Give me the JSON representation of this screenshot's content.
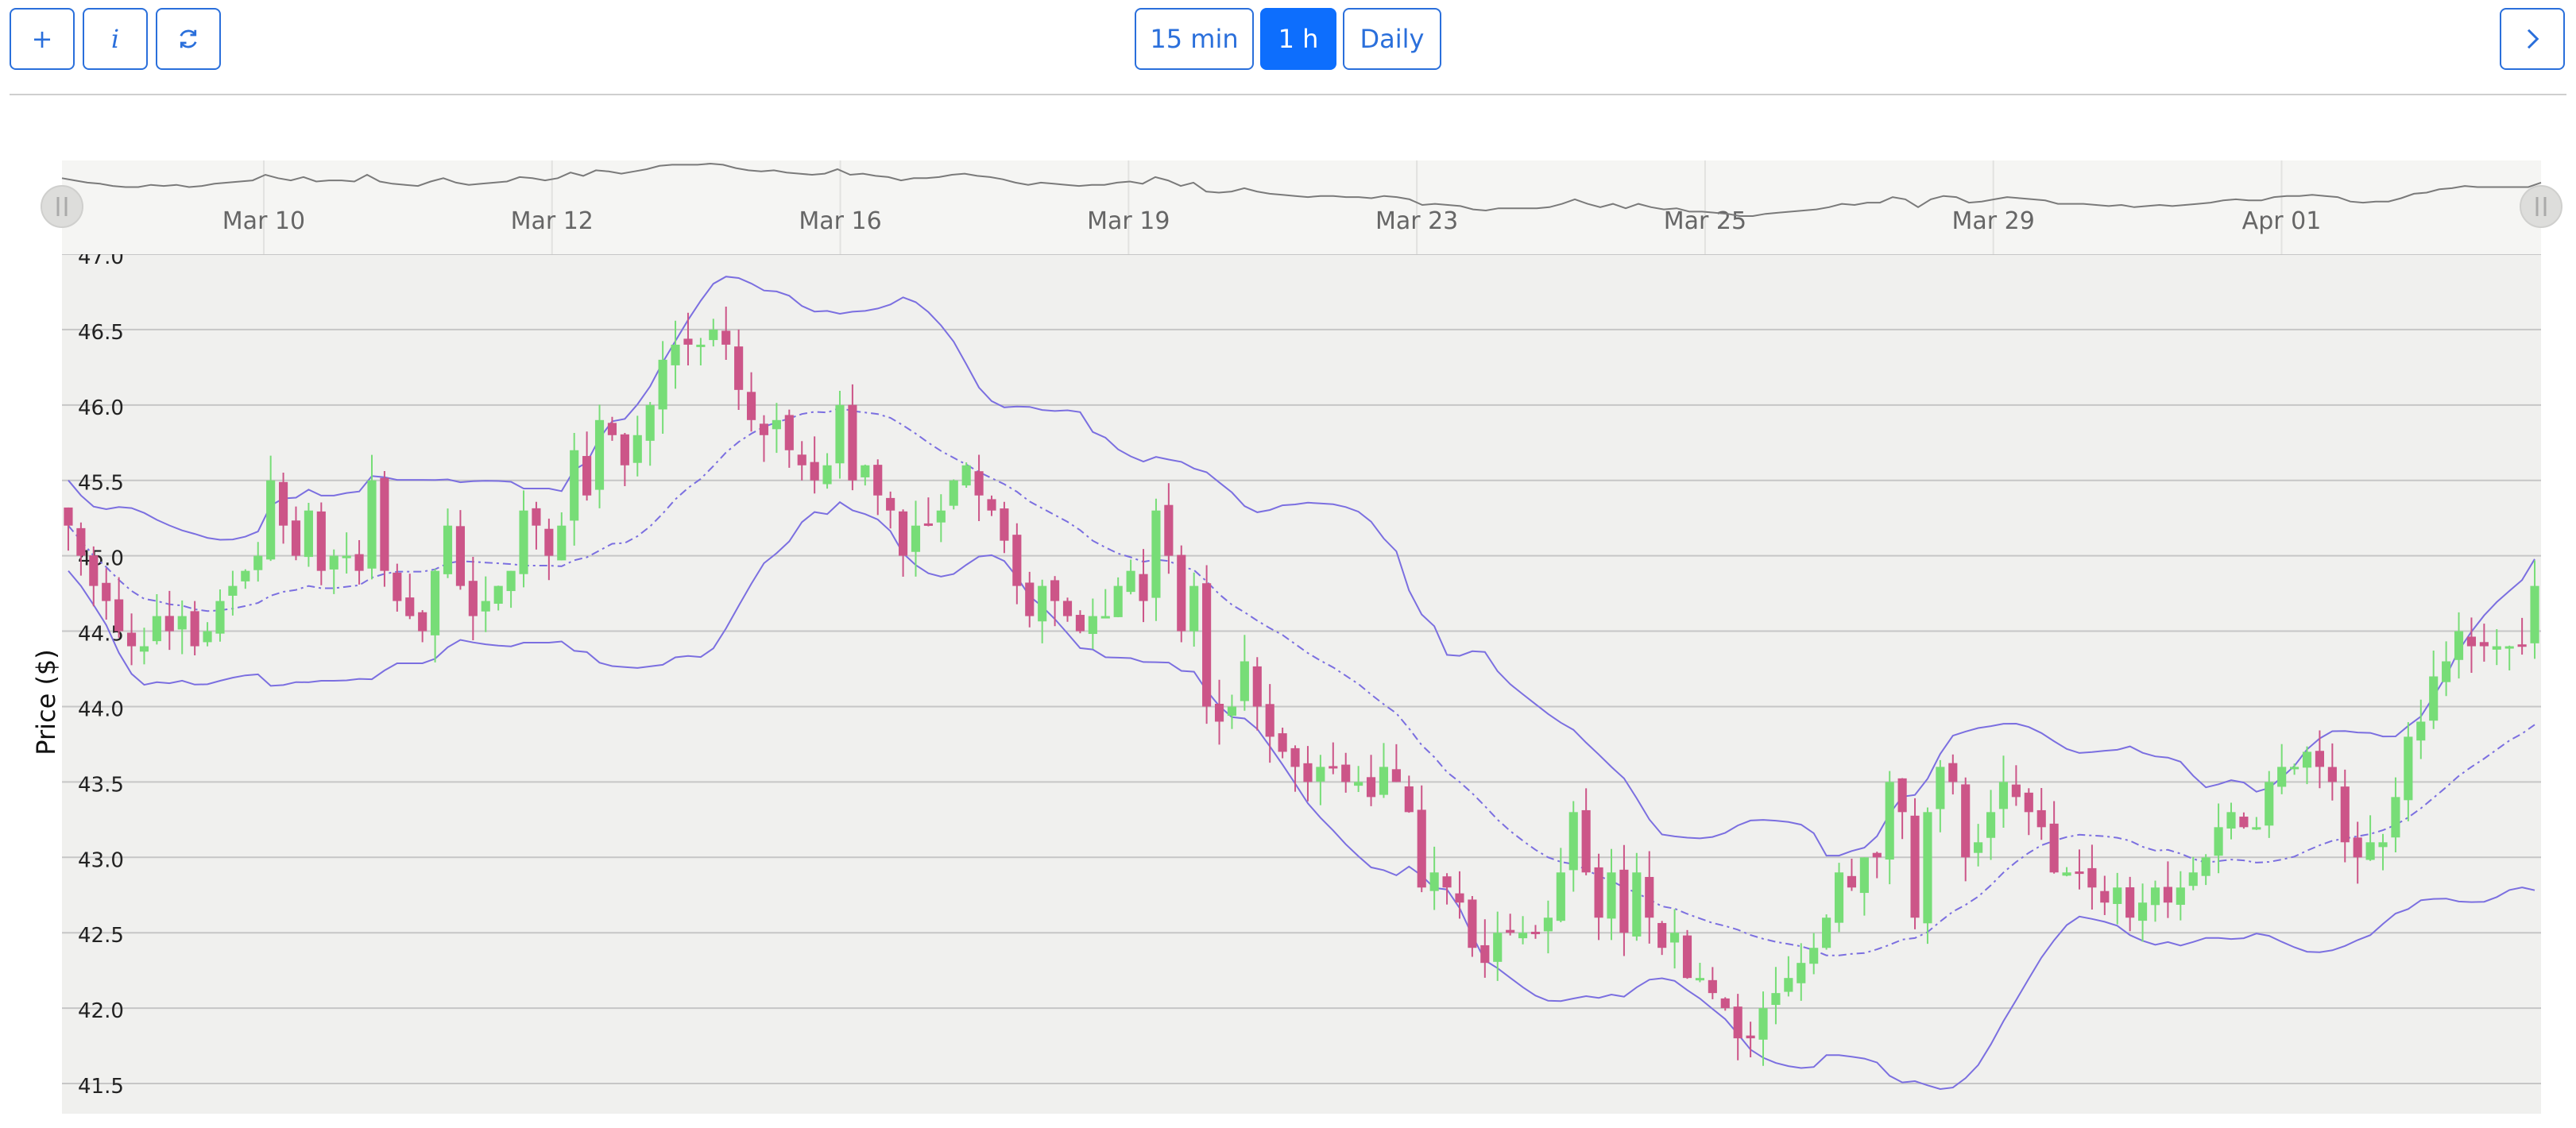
{
  "toolbar": {
    "add_label": "+",
    "info_label": "i",
    "refresh_icon": "refresh-icon",
    "intervals": [
      {
        "label": "15 min",
        "active": false
      },
      {
        "label": "1 h",
        "active": true
      },
      {
        "label": "Daily",
        "active": false
      }
    ],
    "next_icon": "chevron-right-icon"
  },
  "colors": {
    "accent": "#0d6efd",
    "bullish": "#77dd77",
    "bearish": "#cc5588",
    "band": "#7b6fe0",
    "plot_bg": "#f0f0ee",
    "navigator_bg": "#f5f5f3"
  },
  "navigator": {
    "dates": [
      "Mar 10",
      "Mar 12",
      "Mar 16",
      "Mar 19",
      "Mar 23",
      "Mar 25",
      "Mar 29",
      "Apr 01"
    ]
  },
  "chart_data": {
    "type": "candlestick",
    "ylabel": "Price ($)",
    "ylim": [
      41.3,
      47.0
    ],
    "yticks": [
      47.0,
      46.5,
      46.0,
      45.5,
      45.0,
      44.5,
      44.0,
      43.5,
      43.0,
      42.5,
      42.0,
      41.5
    ],
    "indicators": [
      "Bollinger upper",
      "moving average",
      "Bollinger lower"
    ],
    "close": [
      45.2,
      45.0,
      44.8,
      44.7,
      44.5,
      44.4,
      44.4,
      44.6,
      44.5,
      44.6,
      44.4,
      44.5,
      44.7,
      44.8,
      44.9,
      45.0,
      45.5,
      45.2,
      45.0,
      45.3,
      44.9,
      45.0,
      45.0,
      44.9,
      45.5,
      44.9,
      44.7,
      44.6,
      44.5,
      44.9,
      45.2,
      44.8,
      44.6,
      44.7,
      44.8,
      44.9,
      45.3,
      45.2,
      45.0,
      45.2,
      45.7,
      45.4,
      45.9,
      45.8,
      45.6,
      45.8,
      46.0,
      46.3,
      46.4,
      46.4,
      46.4,
      46.5,
      46.4,
      46.1,
      45.9,
      45.8,
      45.9,
      45.7,
      45.6,
      45.5,
      45.6,
      46.0,
      45.5,
      45.6,
      45.4,
      45.3,
      45.0,
      45.2,
      45.2,
      45.3,
      45.5,
      45.6,
      45.4,
      45.3,
      45.1,
      44.8,
      44.6,
      44.8,
      44.7,
      44.6,
      44.5,
      44.6,
      44.6,
      44.8,
      44.9,
      44.7,
      45.3,
      45.0,
      44.5,
      44.8,
      44.0,
      43.9,
      44.0,
      44.3,
      44.0,
      43.8,
      43.7,
      43.6,
      43.5,
      43.6,
      43.6,
      43.5,
      43.5,
      43.4,
      43.6,
      43.5,
      43.3,
      42.8,
      42.9,
      42.8,
      42.7,
      42.4,
      42.3,
      42.5,
      42.5,
      42.5,
      42.5,
      42.6,
      42.9,
      43.3,
      42.9,
      42.6,
      42.9,
      42.5,
      42.9,
      42.6,
      42.4,
      42.5,
      42.2,
      42.2,
      42.1,
      42.0,
      41.8,
      41.8,
      42.0,
      42.1,
      42.2,
      42.3,
      42.4,
      42.6,
      42.9,
      42.8,
      43.0,
      43.0,
      43.5,
      43.3,
      42.6,
      43.3,
      43.6,
      43.5,
      43.0,
      43.1,
      43.3,
      43.5,
      43.4,
      43.3,
      43.2,
      42.9,
      42.9,
      42.9,
      42.8,
      42.7,
      42.8,
      42.6,
      42.7,
      42.8,
      42.7,
      42.8,
      42.9,
      43.0,
      43.2,
      43.3,
      43.2,
      43.2,
      43.5,
      43.6,
      43.6,
      43.7,
      43.6,
      43.5,
      43.1,
      43.0,
      43.1,
      43.1,
      43.4,
      43.8,
      43.9,
      44.2,
      44.3,
      44.5,
      44.4,
      44.4,
      44.4,
      44.4,
      44.4,
      44.8
    ]
  }
}
